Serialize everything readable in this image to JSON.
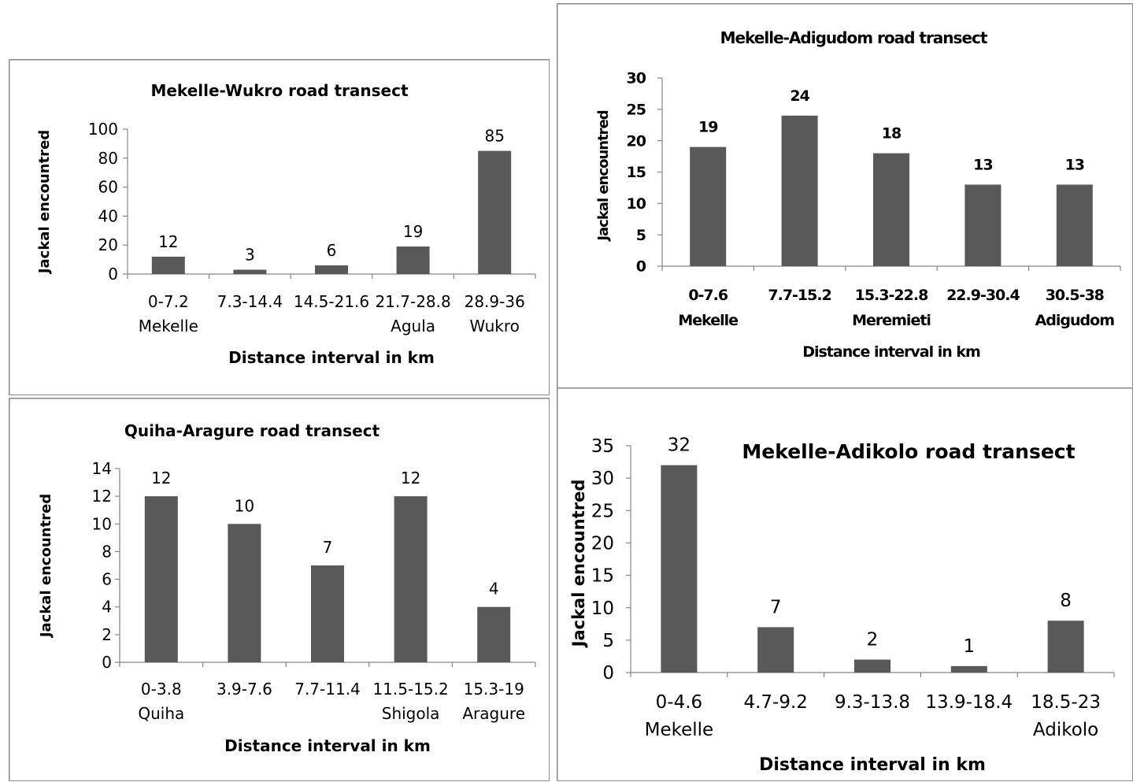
{
  "chart_data": [
    {
      "type": "bar",
      "title": "Mekelle-Wukro road transect",
      "xlabel": "Distance interval in km",
      "ylabel": "Jackal encountred",
      "categories": [
        "0-7.2",
        "7.3-14.4",
        "14.5-21.6",
        "21.7-28.8",
        "28.9-36"
      ],
      "category_sublabels": [
        "Mekelle",
        "",
        "",
        "Agula",
        "Wukro"
      ],
      "values": [
        12,
        3,
        6,
        19,
        85
      ],
      "ylim": [
        0,
        100
      ],
      "yticks": [
        "0",
        "20",
        "40",
        "60",
        "80",
        "100"
      ],
      "bar_color": "#595959"
    },
    {
      "type": "bar",
      "title": "Mekelle-Adigudom road transect",
      "xlabel": "Distance interval in km",
      "ylabel": "Jackal encountred",
      "categories": [
        "0-7.6",
        "7.7-15.2",
        "15.3-22.8",
        "22.9-30.4",
        "30.5-38"
      ],
      "category_sublabels": [
        "Mekelle",
        "",
        "Meremieti",
        "",
        "Adigudom"
      ],
      "values": [
        19,
        24,
        18,
        13,
        13
      ],
      "ylim": [
        0,
        30
      ],
      "yticks": [
        "0",
        "5",
        "10",
        "15",
        "20",
        "25",
        "30"
      ],
      "bar_color": "#595959"
    },
    {
      "type": "bar",
      "title": "Quiha-Aragure road transect",
      "xlabel": "Distance interval in km",
      "ylabel": "Jackal encountred",
      "categories": [
        "0-3.8",
        "3.9-7.6",
        "7.7-11.4",
        "11.5-15.2",
        "15.3-19"
      ],
      "category_sublabels": [
        "Quiha",
        "",
        "",
        "Shigola",
        "Aragure"
      ],
      "values": [
        12,
        10,
        7,
        12,
        4
      ],
      "ylim": [
        0,
        14
      ],
      "yticks": [
        "0",
        "2",
        "4",
        "6",
        "8",
        "10",
        "12",
        "14"
      ],
      "bar_color": "#595959"
    },
    {
      "type": "bar",
      "title": "Mekelle-Adikolo road transect",
      "xlabel": "Distance interval in km",
      "ylabel": "Jackal encountred",
      "categories": [
        "0-4.6",
        "4.7-9.2",
        "9.3-13.8",
        "13.9-18.4",
        "18.5-23"
      ],
      "category_sublabels": [
        "Mekelle",
        "",
        "",
        "",
        "Adikolo"
      ],
      "values": [
        32,
        7,
        2,
        1,
        8
      ],
      "ylim": [
        0,
        35
      ],
      "yticks": [
        "0",
        "5",
        "10",
        "15",
        "20",
        "25",
        "30",
        "35"
      ],
      "bar_color": "#595959"
    }
  ]
}
